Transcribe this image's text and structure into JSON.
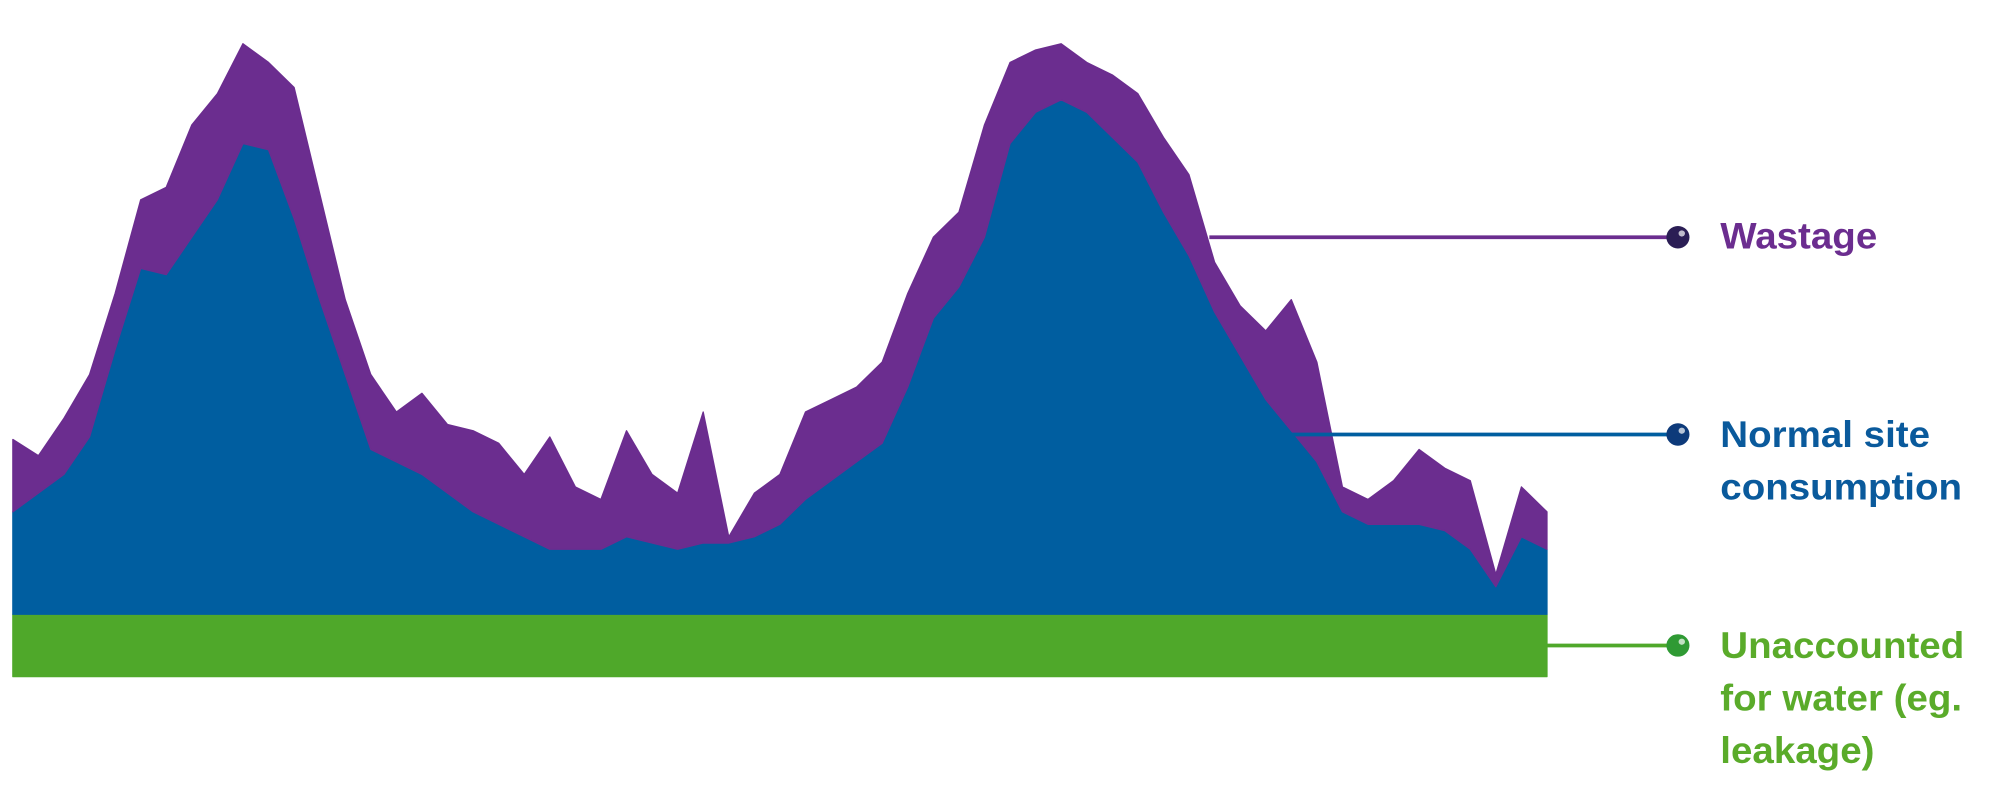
{
  "chart_data": {
    "type": "area",
    "stacked": true,
    "series": [
      {
        "name": "Unaccounted for water (eg. leakage)",
        "color": "#4fa82a",
        "label_color": "#5aab2a",
        "dot_color": "#2f9a34",
        "values": [
          50,
          50,
          50,
          50,
          50,
          50,
          50,
          50,
          50,
          50,
          50,
          50,
          50,
          50,
          50,
          50,
          50,
          50,
          50,
          50,
          50,
          50,
          50,
          50,
          50,
          50,
          50,
          50,
          50,
          50,
          50,
          50,
          50,
          50,
          50,
          50,
          50,
          50,
          50,
          50,
          50,
          50,
          50,
          50,
          50,
          50,
          50,
          50,
          50,
          50,
          50,
          50,
          50,
          50,
          50,
          50,
          50,
          50,
          50,
          50,
          50
        ]
      },
      {
        "name": "Normal site consumption",
        "color": "#005ea0",
        "label_color": "#0a5a9c",
        "dot_color": "#0d3a7a",
        "values": [
          82,
          97,
          112,
          142,
          212,
          277,
          272,
          302,
          332,
          377,
          372,
          317,
          252,
          192,
          132,
          122,
          112,
          97,
          82,
          72,
          62,
          52,
          52,
          52,
          62,
          57,
          52,
          57,
          57,
          62,
          72,
          92,
          107,
          122,
          137,
          182,
          237,
          262,
          302,
          377,
          402,
          412,
          402,
          382,
          362,
          322,
          287,
          242,
          207,
          172,
          147,
          122,
          82,
          72,
          72,
          72,
          67,
          52,
          22,
          62,
          52
        ]
      },
      {
        "name": "Wastage",
        "color": "#6b2d8f",
        "label_color": "#6b2d8f",
        "dot_color": "#2b1e55",
        "values": [
          58,
          30,
          45,
          50,
          45,
          55,
          70,
          90,
          85,
          80,
          70,
          105,
          85,
          60,
          60,
          40,
          65,
          55,
          65,
          65,
          50,
          90,
          50,
          40,
          85,
          55,
          45,
          105,
          5,
          35,
          40,
          70,
          65,
          60,
          65,
          75,
          65,
          60,
          90,
          65,
          50,
          45,
          40,
          50,
          55,
          60,
          65,
          40,
          40,
          55,
          105,
          80,
          20,
          20,
          35,
          60,
          50,
          55,
          10,
          40,
          30
        ]
      }
    ]
  }
}
